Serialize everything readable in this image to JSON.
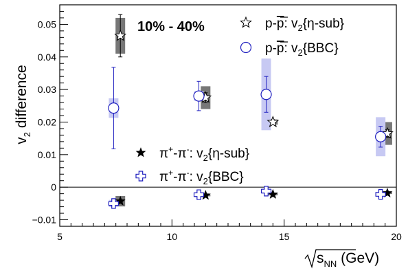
{
  "chart_data": {
    "type": "scatter",
    "annotation": "10% - 40%",
    "xlim": [
      5,
      20
    ],
    "ylim": [
      -0.012,
      0.056
    ],
    "x_ticks": [
      5,
      10,
      15,
      20
    ],
    "y_ticks": [
      -0.01,
      0,
      0.01,
      0.02,
      0.03,
      0.04,
      0.05
    ],
    "x_tick_labels": [
      "5",
      "10",
      "15",
      "20"
    ],
    "y_tick_labels": [
      "−0.01",
      "0",
      "0.01",
      "0.02",
      "0.03",
      "0.04",
      "0.05"
    ],
    "xlabel": {
      "base": "s",
      "sub": "NN",
      "unit": " (GeV)"
    },
    "ylabel": {
      "pre": "v",
      "sub": "2",
      "post": " difference"
    },
    "zero_line": true,
    "series": [
      {
        "name_parts": [
          "p-",
          "p",
          ": v",
          "2",
          "{η-sub}"
        ],
        "marker": "open-star",
        "color": "#000000",
        "syst_color": "#777777",
        "points": [
          {
            "x": 7.7,
            "y": 0.0465,
            "err": 0.0065,
            "syst": 0.0055
          },
          {
            "x": 11.5,
            "y": 0.0275,
            "err": 0.0015,
            "syst": 0.0035
          },
          {
            "x": 14.5,
            "y": 0.02,
            "err": 0.0007,
            "syst": 0.0008
          },
          {
            "x": 19.6,
            "y": 0.0165,
            "err": 0.0012,
            "syst": 0.0035
          }
        ]
      },
      {
        "name_parts": [
          "p-",
          "p",
          ": v",
          "2",
          "{BBC}"
        ],
        "marker": "open-circle",
        "color": "#1f1fbf",
        "syst_color": "#c7c9f3",
        "points": [
          {
            "x": 7.4,
            "y": 0.0243,
            "err": 0.0125,
            "syst": 0.003
          },
          {
            "x": 11.2,
            "y": 0.028,
            "err": 0.0045,
            "syst": 0.0015
          },
          {
            "x": 14.2,
            "y": 0.0285,
            "err": 0.0055,
            "syst": 0.011
          },
          {
            "x": 19.3,
            "y": 0.0155,
            "err": 0.0032,
            "syst": 0.006
          }
        ]
      },
      {
        "name_parts": [
          "π",
          "+",
          "-π",
          "-",
          ": v",
          "2",
          "{η-sub}"
        ],
        "marker": "filled-star",
        "color": "#000000",
        "syst_color": "#777777",
        "points": [
          {
            "x": 7.7,
            "y": -0.0043,
            "err": 0.0003,
            "syst": 0.0016
          },
          {
            "x": 11.5,
            "y": -0.0025,
            "err": 0.0002,
            "syst": 0.0003
          },
          {
            "x": 14.5,
            "y": -0.0022,
            "err": 0.0002,
            "syst": 0.0003
          },
          {
            "x": 19.6,
            "y": -0.0018,
            "err": 0.0002,
            "syst": 0.0003
          }
        ]
      },
      {
        "name_parts": [
          "π",
          "+",
          "-π",
          "-",
          ": v",
          "2",
          "{BBC}"
        ],
        "marker": "open-cross",
        "color": "#1f1fbf",
        "syst_color": "#c7c9f3",
        "points": [
          {
            "x": 7.4,
            "y": -0.005,
            "err": 0.0005,
            "syst": 0.0011
          },
          {
            "x": 11.2,
            "y": -0.0023,
            "err": 0.0004,
            "syst": 0.0006
          },
          {
            "x": 14.2,
            "y": -0.0012,
            "err": 0.0004,
            "syst": 0.0008
          },
          {
            "x": 19.3,
            "y": -0.0022,
            "err": 0.0004,
            "syst": 0.0006
          }
        ]
      }
    ]
  }
}
